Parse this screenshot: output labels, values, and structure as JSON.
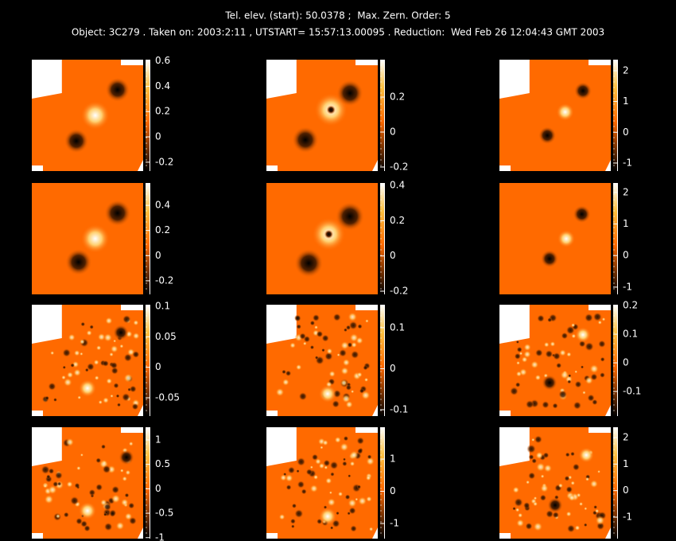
{
  "header": {
    "line1": "Tel. elev. (start): 50.0378 ;  Max. Zern. Order: 5",
    "line2": "Object: 3C279 . Taken on: 2003:2:11 , UTSTART= 15:57:13.00095 . Reduction:  Wed Feb 26 12:04:43 GMT 2003"
  },
  "panels": [
    {
      "cbar_lim": [
        -0.27,
        0.61
      ],
      "ticks": [
        0.6,
        0.4,
        0.2,
        0,
        -0.2
      ]
    },
    {
      "cbar_lim": [
        -0.223,
        0.414
      ],
      "ticks": [
        0.2,
        0,
        -0.2
      ]
    },
    {
      "cbar_lim": [
        -1.26,
        2.36
      ],
      "ticks": [
        2,
        1,
        0,
        -1
      ]
    },
    {
      "cbar_lim": [
        -0.308,
        0.578
      ],
      "ticks": [
        0.4,
        0.2,
        0,
        -0.2
      ]
    },
    {
      "cbar_lim": [
        -0.218,
        0.414
      ],
      "ticks": [
        0.4,
        0.2,
        0,
        -0.2
      ]
    },
    {
      "cbar_lim": [
        -1.23,
        2.3
      ],
      "ticks": [
        2,
        1,
        0,
        -1
      ]
    },
    {
      "cbar_lim": [
        -0.08,
        0.1026
      ],
      "ticks": [
        0.1,
        0.05,
        0,
        -0.05
      ]
    },
    {
      "cbar_lim": [
        -0.1155,
        0.156
      ],
      "ticks": [
        0.1,
        0,
        -0.1
      ]
    },
    {
      "cbar_lim": [
        -0.186,
        0.203
      ],
      "ticks": [
        0.2,
        0.1,
        0,
        -0.1
      ]
    },
    {
      "cbar_lim": [
        -1.02,
        1.26
      ],
      "ticks": [
        1,
        0.5,
        0,
        -0.5,
        -1
      ]
    },
    {
      "cbar_lim": [
        -1.47,
        1.99
      ],
      "ticks": [
        1,
        0,
        -1
      ]
    },
    {
      "cbar_lim": [
        -1.81,
        2.39
      ],
      "ticks": [
        2,
        1,
        0,
        -1
      ]
    }
  ]
}
